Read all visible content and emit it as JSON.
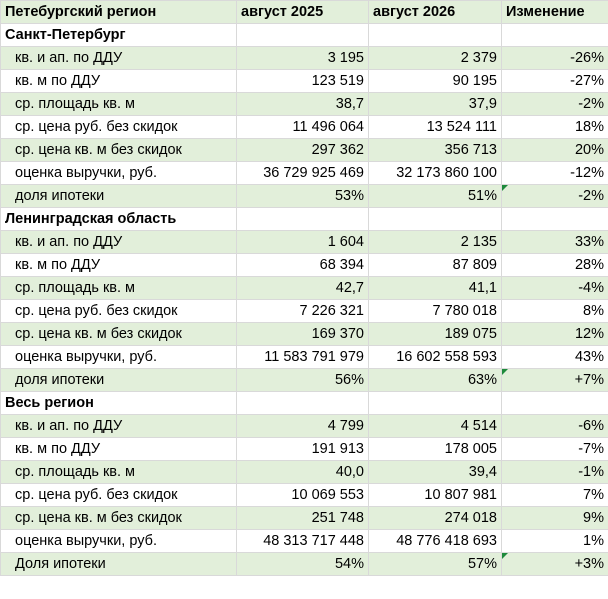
{
  "header": {
    "region": "Петебургский регион",
    "col1": "август 2025",
    "col2": "август 2026",
    "col3": "Изменение"
  },
  "sections": [
    {
      "title": "Санкт-Петербург",
      "rows": [
        {
          "label": "кв. и ап. по ДДУ",
          "v2025": "3 195",
          "v2026": "2 379",
          "change": "-26%"
        },
        {
          "label": "кв. м по ДДУ",
          "v2025": "123 519",
          "v2026": "90 195",
          "change": "-27%"
        },
        {
          "label": "ср. площадь кв. м",
          "v2025": "38,7",
          "v2026": "37,9",
          "change": "-2%"
        },
        {
          "label": "ср. цена руб. без скидок",
          "v2025": "11 496 064",
          "v2026": "13 524 111",
          "change": "18%"
        },
        {
          "label": "ср. цена кв. м без скидок",
          "v2025": "297 362",
          "v2026": "356 713",
          "change": "20%"
        },
        {
          "label": "оценка выручки, руб.",
          "v2025": "36 729 925 469",
          "v2026": "32 173 860 100",
          "change": "-12%"
        },
        {
          "label": "доля ипотеки",
          "v2025": "53%",
          "v2026": "51%",
          "change": "-2%"
        }
      ]
    },
    {
      "title": "Ленинградская область",
      "rows": [
        {
          "label": "кв. и ап. по ДДУ",
          "v2025": "1 604",
          "v2026": "2 135",
          "change": "33%"
        },
        {
          "label": "кв. м по ДДУ",
          "v2025": "68 394",
          "v2026": "87 809",
          "change": "28%"
        },
        {
          "label": "ср. площадь кв. м",
          "v2025": "42,7",
          "v2026": "41,1",
          "change": "-4%"
        },
        {
          "label": "ср. цена руб. без скидок",
          "v2025": "7 226 321",
          "v2026": "7 780 018",
          "change": "8%"
        },
        {
          "label": "ср. цена кв. м без скидок",
          "v2025": "169 370",
          "v2026": "189 075",
          "change": "12%"
        },
        {
          "label": "оценка выручки, руб.",
          "v2025": "11 583 791 979",
          "v2026": "16 602 558 593",
          "change": "43%"
        },
        {
          "label": "доля ипотеки",
          "v2025": "56%",
          "v2026": "63%",
          "change": "+7%"
        }
      ]
    },
    {
      "title": "Весь регион",
      "rows": [
        {
          "label": "кв. и ап. по ДДУ",
          "v2025": "4 799",
          "v2026": "4 514",
          "change": "-6%"
        },
        {
          "label": "кв. м по ДДУ",
          "v2025": "191 913",
          "v2026": "178 005",
          "change": "-7%"
        },
        {
          "label": "ср. площадь кв. м",
          "v2025": "40,0",
          "v2026": "39,4",
          "change": "-1%"
        },
        {
          "label": "ср. цена руб. без скидок",
          "v2025": "10 069 553",
          "v2026": "10 807 981",
          "change": "7%"
        },
        {
          "label": "ср. цена кв. м без скидок",
          "v2025": "251 748",
          "v2026": "274 018",
          "change": "9%"
        },
        {
          "label": "оценка выручки, руб.",
          "v2025": "48 313 717 448",
          "v2026": "48 776 418 693",
          "change": "1%"
        },
        {
          "label": "Доля ипотеки",
          "v2025": "54%",
          "v2026": "57%",
          "change": "+3%"
        }
      ]
    }
  ]
}
